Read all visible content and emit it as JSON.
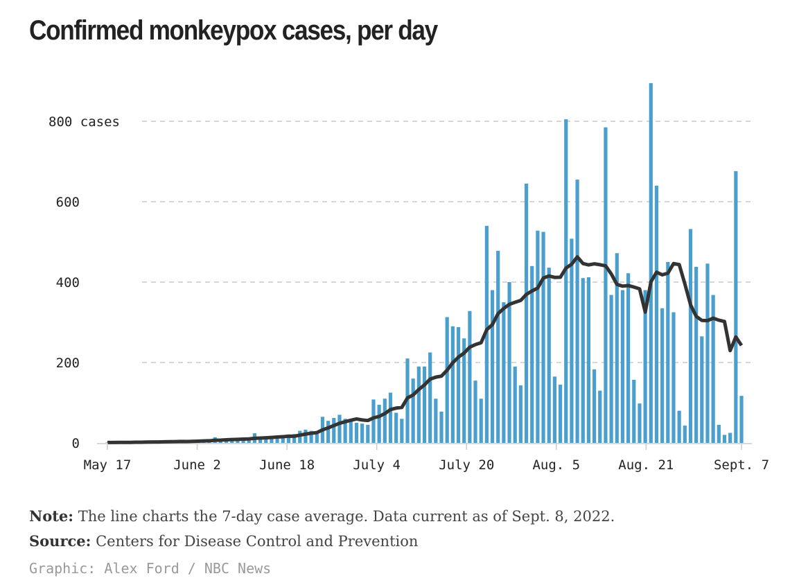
{
  "title": "Confirmed monkeypox cases, per day",
  "chart_data": {
    "type": "bar",
    "title": "Confirmed monkeypox cases, per day",
    "xlabel": "",
    "ylabel": "cases",
    "ylim": [
      0,
      900
    ],
    "y_ticks": [
      {
        "value": 0,
        "label": "0"
      },
      {
        "value": 200,
        "label": "200"
      },
      {
        "value": 400,
        "label": "400"
      },
      {
        "value": 600,
        "label": "600"
      },
      {
        "value": 800,
        "label": "800 cases"
      }
    ],
    "x_ticks": [
      {
        "day": 0,
        "label": "May 17"
      },
      {
        "day": 16,
        "label": "June 2"
      },
      {
        "day": 32,
        "label": "June 18"
      },
      {
        "day": 48,
        "label": "July 4"
      },
      {
        "day": 64,
        "label": "July 20"
      },
      {
        "day": 80,
        "label": "Aug. 5"
      },
      {
        "day": 96,
        "label": "Aug. 21"
      },
      {
        "day": 113,
        "label": "Sept. 7"
      }
    ],
    "grid": true,
    "start_date": "May 17",
    "series": [
      {
        "name": "Daily cases",
        "type": "bar",
        "color": "#4a9fce",
        "values": [
          1,
          1,
          2,
          1,
          2,
          3,
          2,
          4,
          3,
          2,
          3,
          4,
          5,
          4,
          3,
          6,
          5,
          8,
          6,
          14,
          7,
          9,
          10,
          8,
          12,
          10,
          24,
          11,
          14,
          16,
          15,
          18,
          20,
          22,
          30,
          33,
          30,
          27,
          65,
          55,
          62,
          70,
          60,
          55,
          50,
          48,
          45,
          108,
          95,
          110,
          125,
          75,
          60,
          210,
          160,
          190,
          190,
          225,
          110,
          78,
          313,
          290,
          288,
          260,
          328,
          155,
          110,
          540,
          380,
          478,
          350,
          400,
          190,
          143,
          645,
          440,
          528,
          525,
          436,
          165,
          145,
          805,
          508,
          655,
          410,
          412,
          183,
          130,
          785,
          368,
          472,
          380,
          422,
          157,
          98,
          380,
          895,
          640,
          335,
          450,
          325,
          80,
          43,
          532,
          438,
          265,
          446,
          368,
          45,
          20,
          25,
          676,
          117
        ]
      },
      {
        "name": "7-day case average",
        "type": "line",
        "color": "#333333",
        "method": "7-day rolling average of daily cases"
      }
    ]
  },
  "note_label": "Note:",
  "note_text": " The line charts the 7-day case average. Data current as of Sept. 8, 2022.",
  "source_label": "Source:",
  "source_text": " Centers for Disease Control and Prevention",
  "credit": "Graphic: Alex Ford / NBC News"
}
